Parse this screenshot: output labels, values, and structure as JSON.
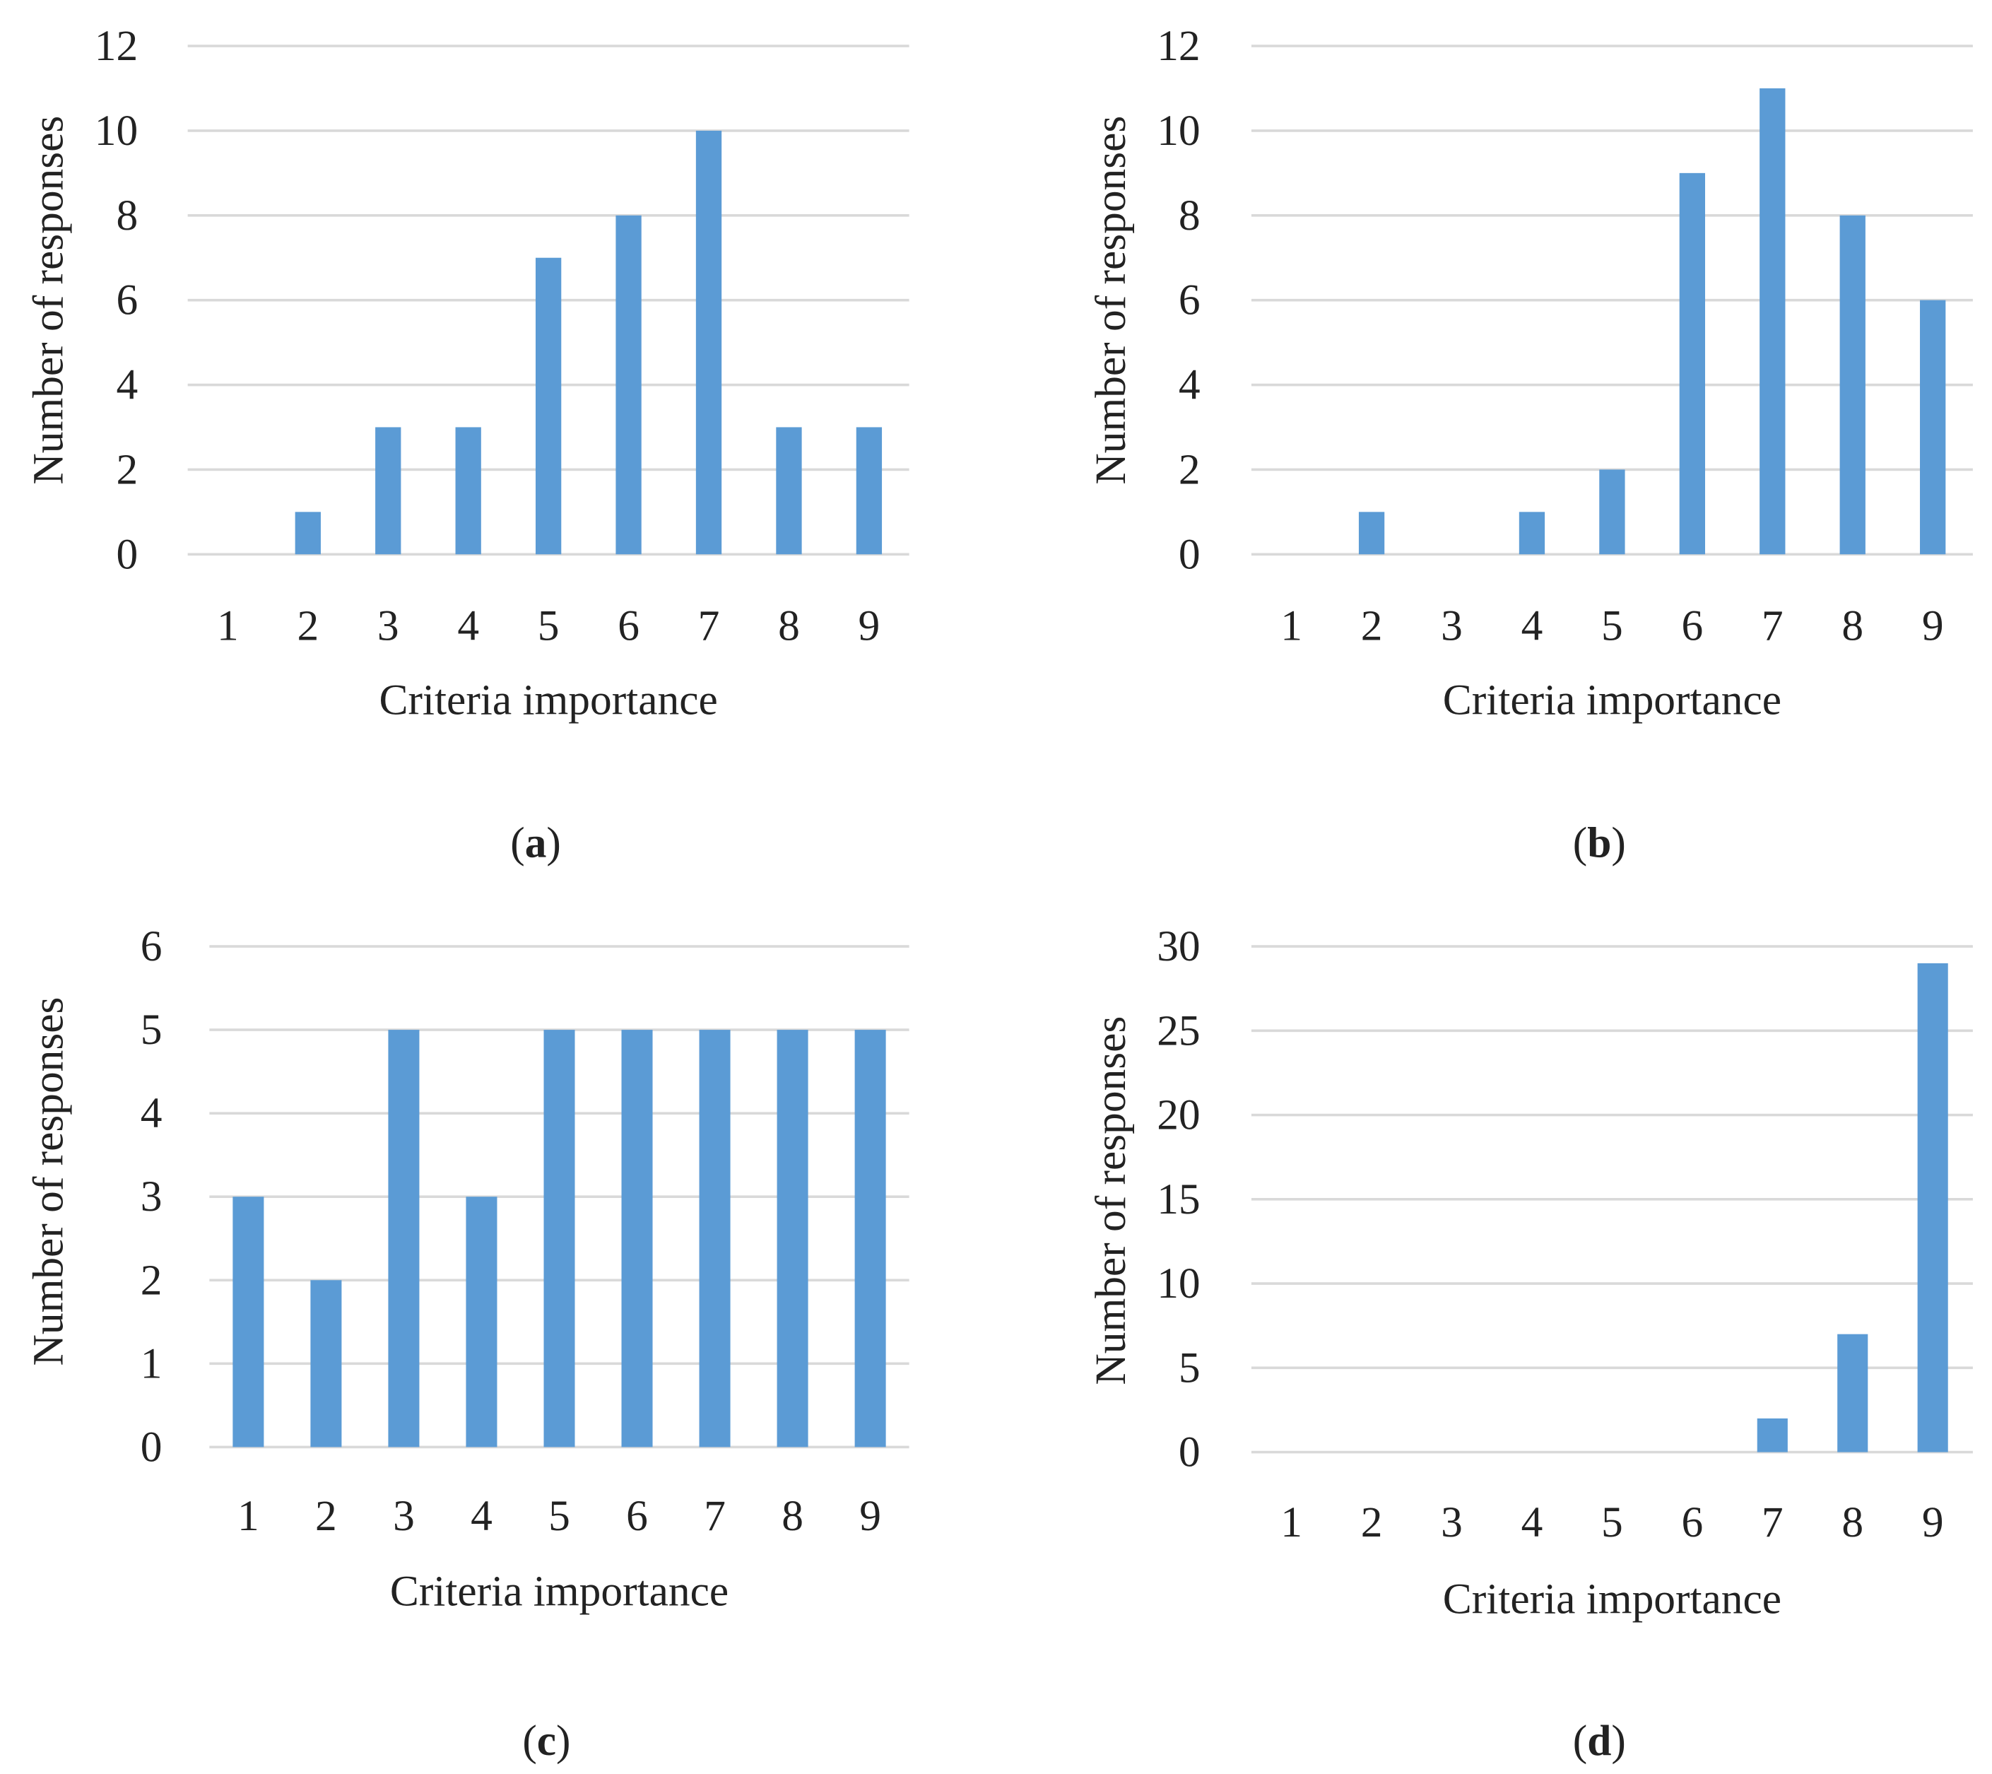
{
  "figure": {
    "bar_color": "#5B9BD5",
    "grid_color": "#D9D9D9",
    "text_color": "#222222"
  },
  "chart_data": [
    {
      "type": "bar",
      "panel_label": "(a)",
      "letter": "a",
      "xlabel": "Criteria importance",
      "ylabel": "Number of responses",
      "categories": [
        "1",
        "2",
        "3",
        "4",
        "5",
        "6",
        "7",
        "8",
        "9"
      ],
      "values": [
        0,
        1,
        3,
        3,
        7,
        8,
        10,
        3,
        3
      ],
      "yticks": [
        0,
        2,
        4,
        6,
        8,
        10,
        12
      ],
      "ylim": [
        0,
        12
      ],
      "grid": true
    },
    {
      "type": "bar",
      "panel_label": "(b)",
      "letter": "b",
      "xlabel": "Criteria importance",
      "ylabel": "Number of responses",
      "categories": [
        "1",
        "2",
        "3",
        "4",
        "5",
        "6",
        "7",
        "8",
        "9"
      ],
      "values": [
        0,
        1,
        0,
        1,
        2,
        9,
        11,
        8,
        6
      ],
      "yticks": [
        0,
        2,
        4,
        6,
        8,
        10,
        12
      ],
      "ylim": [
        0,
        12
      ],
      "grid": true
    },
    {
      "type": "bar",
      "panel_label": "(c)",
      "letter": "c",
      "xlabel": "Criteria importance",
      "ylabel": "Number of responses",
      "categories": [
        "1",
        "2",
        "3",
        "4",
        "5",
        "6",
        "7",
        "8",
        "9"
      ],
      "values": [
        3,
        2,
        5,
        3,
        5,
        5,
        5,
        5,
        5
      ],
      "yticks": [
        0,
        1,
        2,
        3,
        4,
        5,
        6
      ],
      "ylim": [
        0,
        6
      ],
      "grid": true
    },
    {
      "type": "bar",
      "panel_label": "(d)",
      "letter": "d",
      "xlabel": "Criteria importance",
      "ylabel": "Number of responses",
      "categories": [
        "1",
        "2",
        "3",
        "4",
        "5",
        "6",
        "7",
        "8",
        "9"
      ],
      "values": [
        0,
        0,
        0,
        0,
        0,
        0,
        2,
        7,
        29
      ],
      "yticks": [
        0,
        5,
        10,
        15,
        20,
        25,
        30
      ],
      "ylim": [
        0,
        30
      ],
      "grid": true
    }
  ]
}
